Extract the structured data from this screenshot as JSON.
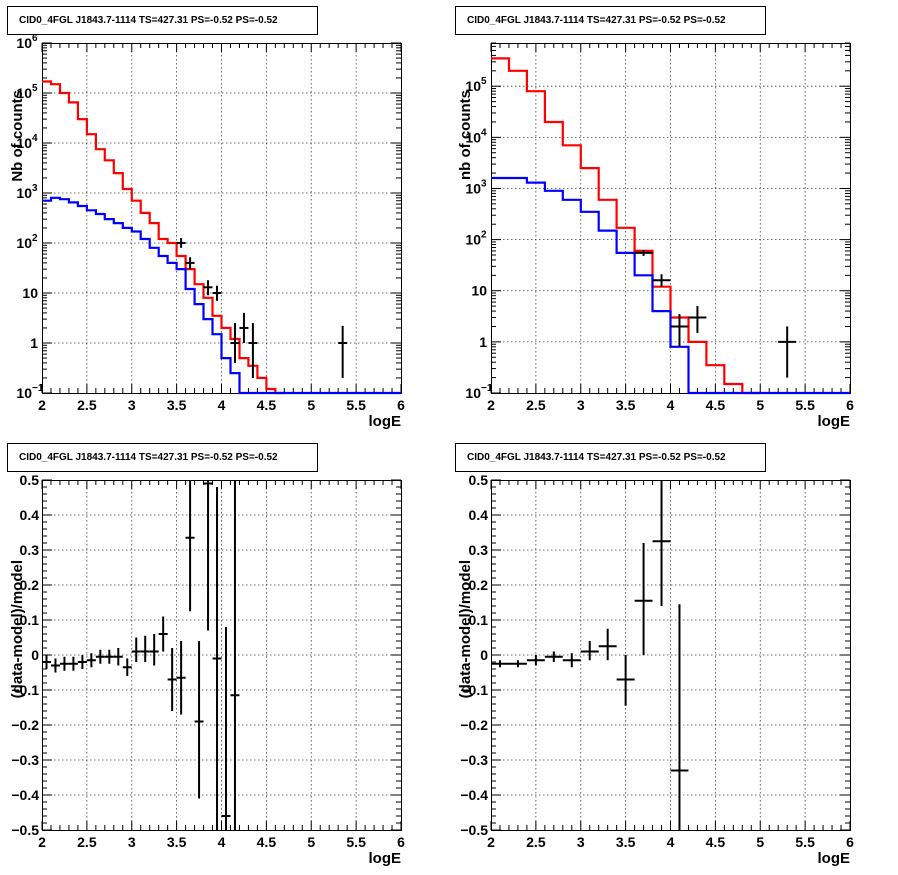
{
  "chart_data": [
    {
      "type": "line",
      "title": "CID0_4FGL J1843.7-1114 TS=427.31 PS=-0.52 PS=-0.52",
      "xlabel": "logE",
      "ylabel": "Nb of counts",
      "xlim": [
        2,
        6
      ],
      "ylim": [
        0.1,
        1000000
      ],
      "yscale": "log",
      "grid": true,
      "xticks": [
        "2",
        "2.5",
        "3",
        "3.5",
        "4",
        "4.5",
        "5",
        "5.5",
        "6"
      ],
      "yticks": [
        {
          "value": 0.1,
          "base": "10",
          "exp": "−1"
        },
        {
          "value": 1,
          "base": "1",
          "exp": ""
        },
        {
          "value": 10,
          "base": "10",
          "exp": ""
        },
        {
          "value": 100,
          "base": "10",
          "exp": "2"
        },
        {
          "value": 1000,
          "base": "10",
          "exp": "3"
        },
        {
          "value": 10000,
          "base": "10",
          "exp": "4"
        },
        {
          "value": 100000,
          "base": "10",
          "exp": "5"
        },
        {
          "value": 1000000,
          "base": "10",
          "exp": "6"
        }
      ],
      "binwidth": 0.1,
      "series": [
        {
          "color": "#ff0000",
          "style": "step",
          "x": [
            2.0,
            2.1,
            2.2,
            2.3,
            2.4,
            2.5,
            2.6,
            2.7,
            2.8,
            2.9,
            3.0,
            3.1,
            3.2,
            3.3,
            3.4,
            3.5,
            3.6,
            3.7,
            3.8,
            3.9,
            4.0,
            4.1,
            4.2,
            4.3,
            4.4,
            4.5,
            4.6
          ],
          "y": [
            170000,
            150000,
            100000,
            65000,
            30000,
            15000,
            7500,
            4500,
            2500,
            1200,
            700,
            400,
            250,
            120,
            100,
            55,
            30,
            15,
            8,
            3.5,
            2,
            1.2,
            0.5,
            0.35,
            0.2,
            0.12,
            0.1
          ]
        },
        {
          "color": "#0000ff",
          "style": "step",
          "x": [
            2.0,
            2.1,
            2.2,
            2.3,
            2.4,
            2.5,
            2.6,
            2.7,
            2.8,
            2.9,
            3.0,
            3.1,
            3.2,
            3.3,
            3.4,
            3.5,
            3.6,
            3.7,
            3.8,
            3.9,
            4.0,
            4.1,
            4.2,
            4.3,
            4.4,
            5.0,
            6.0
          ],
          "y": [
            700,
            800,
            750,
            650,
            550,
            450,
            380,
            300,
            250,
            200,
            170,
            120,
            80,
            55,
            40,
            30,
            12,
            6,
            3,
            1.5,
            0.5,
            0.25,
            0.1,
            0.1,
            0.1,
            0.1,
            0.1
          ]
        },
        {
          "color": "#000000",
          "style": "points",
          "points": [
            {
              "x": 3.55,
              "y": 100,
              "ylo": 80,
              "yhi": 125
            },
            {
              "x": 3.65,
              "y": 40,
              "ylo": 30,
              "yhi": 52
            },
            {
              "x": 3.85,
              "y": 13,
              "ylo": 9,
              "yhi": 18
            },
            {
              "x": 3.95,
              "y": 10,
              "ylo": 7,
              "yhi": 14
            },
            {
              "x": 4.15,
              "y": 1,
              "ylo": 0.4,
              "yhi": 2.5
            },
            {
              "x": 4.25,
              "y": 2,
              "ylo": 1,
              "yhi": 4
            },
            {
              "x": 4.35,
              "y": 1,
              "ylo": 0.2,
              "yhi": 2.5
            },
            {
              "x": 5.35,
              "y": 1,
              "ylo": 0.2,
              "yhi": 2.2
            }
          ]
        }
      ]
    },
    {
      "type": "line",
      "title": "CID0_4FGL J1843.7-1114 TS=427.31 PS=-0.52 PS=-0.52",
      "xlabel": "logE",
      "ylabel": "nb of counts",
      "xlim": [
        2,
        6
      ],
      "ylim": [
        0.1,
        700000
      ],
      "yscale": "log",
      "grid": true,
      "xticks": [
        "2",
        "2.5",
        "3",
        "3.5",
        "4",
        "4.5",
        "5",
        "5.5",
        "6"
      ],
      "yticks": [
        {
          "value": 0.1,
          "base": "10",
          "exp": "−1"
        },
        {
          "value": 1,
          "base": "1",
          "exp": ""
        },
        {
          "value": 10,
          "base": "10",
          "exp": ""
        },
        {
          "value": 100,
          "base": "10",
          "exp": "2"
        },
        {
          "value": 1000,
          "base": "10",
          "exp": "3"
        },
        {
          "value": 10000,
          "base": "10",
          "exp": "4"
        },
        {
          "value": 100000,
          "base": "10",
          "exp": "5"
        }
      ],
      "binwidth": 0.2,
      "series": [
        {
          "color": "#ff0000",
          "style": "step",
          "x": [
            2.0,
            2.2,
            2.4,
            2.6,
            2.8,
            3.0,
            3.2,
            3.4,
            3.6,
            3.8,
            4.0,
            4.2,
            4.4,
            4.6,
            4.8
          ],
          "y": [
            350000,
            200000,
            80000,
            20000,
            7000,
            2500,
            600,
            170,
            60,
            12,
            3,
            1,
            0.35,
            0.15,
            0.1
          ]
        },
        {
          "color": "#0000ff",
          "style": "step",
          "x": [
            2.0,
            2.2,
            2.4,
            2.6,
            2.8,
            3.0,
            3.2,
            3.4,
            3.6,
            3.8,
            4.0,
            4.2,
            5.0,
            6.0
          ],
          "y": [
            1600,
            1600,
            1300,
            900,
            600,
            350,
            150,
            55,
            20,
            4,
            0.8,
            0.1,
            0.1,
            0.1
          ]
        },
        {
          "color": "#000000",
          "style": "points",
          "points": [
            {
              "x": 3.7,
              "y": 55,
              "ylo": 48,
              "yhi": 63
            },
            {
              "x": 3.9,
              "y": 16,
              "ylo": 12,
              "yhi": 21
            },
            {
              "x": 4.1,
              "y": 2,
              "ylo": 0.8,
              "yhi": 3.5
            },
            {
              "x": 4.3,
              "y": 3,
              "ylo": 1.5,
              "yhi": 5
            },
            {
              "x": 5.3,
              "y": 1,
              "ylo": 0.2,
              "yhi": 2
            }
          ]
        }
      ]
    },
    {
      "type": "scatter",
      "title": "CID0_4FGL J1843.7-1114 TS=427.31 PS=-0.52 PS=-0.52",
      "xlabel": "logE",
      "ylabel": "(data-model)/model",
      "xlim": [
        2,
        6
      ],
      "ylim": [
        -0.5,
        0.5
      ],
      "yscale": "linear",
      "grid": true,
      "xticks": [
        "2",
        "2.5",
        "3",
        "3.5",
        "4",
        "4.5",
        "5",
        "5.5",
        "6"
      ],
      "yticks": [
        "−0.5",
        "−0.4",
        "−0.3",
        "−0.2",
        "−0.1",
        "0",
        "0.1",
        "0.2",
        "0.3",
        "0.4",
        "0.5"
      ],
      "binwidth": 0.1,
      "series": [
        {
          "color": "#000000",
          "style": "points",
          "points": [
            {
              "x": 2.05,
              "y": -0.02,
              "ylo": -0.04,
              "yhi": 0.0
            },
            {
              "x": 2.15,
              "y": -0.03,
              "ylo": -0.05,
              "yhi": -0.01
            },
            {
              "x": 2.25,
              "y": -0.025,
              "ylo": -0.045,
              "yhi": -0.005
            },
            {
              "x": 2.35,
              "y": -0.025,
              "ylo": -0.045,
              "yhi": -0.005
            },
            {
              "x": 2.45,
              "y": -0.02,
              "ylo": -0.04,
              "yhi": 0.0
            },
            {
              "x": 2.55,
              "y": -0.015,
              "ylo": -0.035,
              "yhi": 0.005
            },
            {
              "x": 2.65,
              "y": -0.005,
              "ylo": -0.025,
              "yhi": 0.015
            },
            {
              "x": 2.75,
              "y": -0.005,
              "ylo": -0.025,
              "yhi": 0.015
            },
            {
              "x": 2.85,
              "y": -0.005,
              "ylo": -0.03,
              "yhi": 0.02
            },
            {
              "x": 2.95,
              "y": -0.035,
              "ylo": -0.06,
              "yhi": -0.01
            },
            {
              "x": 3.05,
              "y": 0.01,
              "ylo": -0.02,
              "yhi": 0.05
            },
            {
              "x": 3.15,
              "y": 0.01,
              "ylo": -0.02,
              "yhi": 0.055
            },
            {
              "x": 3.25,
              "y": 0.01,
              "ylo": -0.03,
              "yhi": 0.06
            },
            {
              "x": 3.35,
              "y": 0.06,
              "ylo": 0.01,
              "yhi": 0.11
            },
            {
              "x": 3.45,
              "y": -0.07,
              "ylo": -0.16,
              "yhi": 0.02
            },
            {
              "x": 3.55,
              "y": -0.065,
              "ylo": -0.17,
              "yhi": 0.04
            },
            {
              "x": 3.65,
              "y": 0.335,
              "ylo": 0.125,
              "yhi": 0.5
            },
            {
              "x": 3.75,
              "y": -0.19,
              "ylo": -0.41,
              "yhi": 0.04
            },
            {
              "x": 3.85,
              "y": 0.49,
              "ylo": 0.07,
              "yhi": 0.5
            },
            {
              "x": 3.95,
              "y": -0.01,
              "ylo": -0.5,
              "yhi": 0.48
            },
            {
              "x": 4.05,
              "y": -0.46,
              "ylo": -0.5,
              "yhi": 0.08
            },
            {
              "x": 4.15,
              "y": -0.115,
              "ylo": -0.5,
              "yhi": 0.5
            }
          ]
        }
      ]
    },
    {
      "type": "scatter",
      "title": "CID0_4FGL J1843.7-1114 TS=427.31 PS=-0.52 PS=-0.52",
      "xlabel": "logE",
      "ylabel": "(data-model)/model",
      "xlim": [
        2,
        6
      ],
      "ylim": [
        -0.5,
        0.5
      ],
      "yscale": "linear",
      "grid": true,
      "xticks": [
        "2",
        "2.5",
        "3",
        "3.5",
        "4",
        "4.5",
        "5",
        "5.5",
        "6"
      ],
      "yticks": [
        "−0.5",
        "−0.4",
        "−0.3",
        "−0.2",
        "−0.1",
        "0",
        "0.1",
        "0.2",
        "0.3",
        "0.4",
        "0.5"
      ],
      "binwidth": 0.2,
      "series": [
        {
          "color": "#000000",
          "style": "points",
          "points": [
            {
              "x": 2.1,
              "y": -0.025,
              "ylo": -0.035,
              "yhi": -0.015
            },
            {
              "x": 2.3,
              "y": -0.025,
              "ylo": -0.035,
              "yhi": -0.015
            },
            {
              "x": 2.5,
              "y": -0.015,
              "ylo": -0.03,
              "yhi": 0.0
            },
            {
              "x": 2.7,
              "y": -0.005,
              "ylo": -0.02,
              "yhi": 0.01
            },
            {
              "x": 2.9,
              "y": -0.015,
              "ylo": -0.035,
              "yhi": 0.005
            },
            {
              "x": 3.1,
              "y": 0.01,
              "ylo": -0.015,
              "yhi": 0.04
            },
            {
              "x": 3.3,
              "y": 0.025,
              "ylo": -0.015,
              "yhi": 0.075
            },
            {
              "x": 3.5,
              "y": -0.07,
              "ylo": -0.145,
              "yhi": 0.0
            },
            {
              "x": 3.7,
              "y": 0.155,
              "ylo": 0.0,
              "yhi": 0.32
            },
            {
              "x": 3.9,
              "y": 0.325,
              "ylo": 0.14,
              "yhi": 0.5
            },
            {
              "x": 4.1,
              "y": -0.33,
              "ylo": -0.5,
              "yhi": 0.145
            }
          ]
        }
      ]
    }
  ]
}
